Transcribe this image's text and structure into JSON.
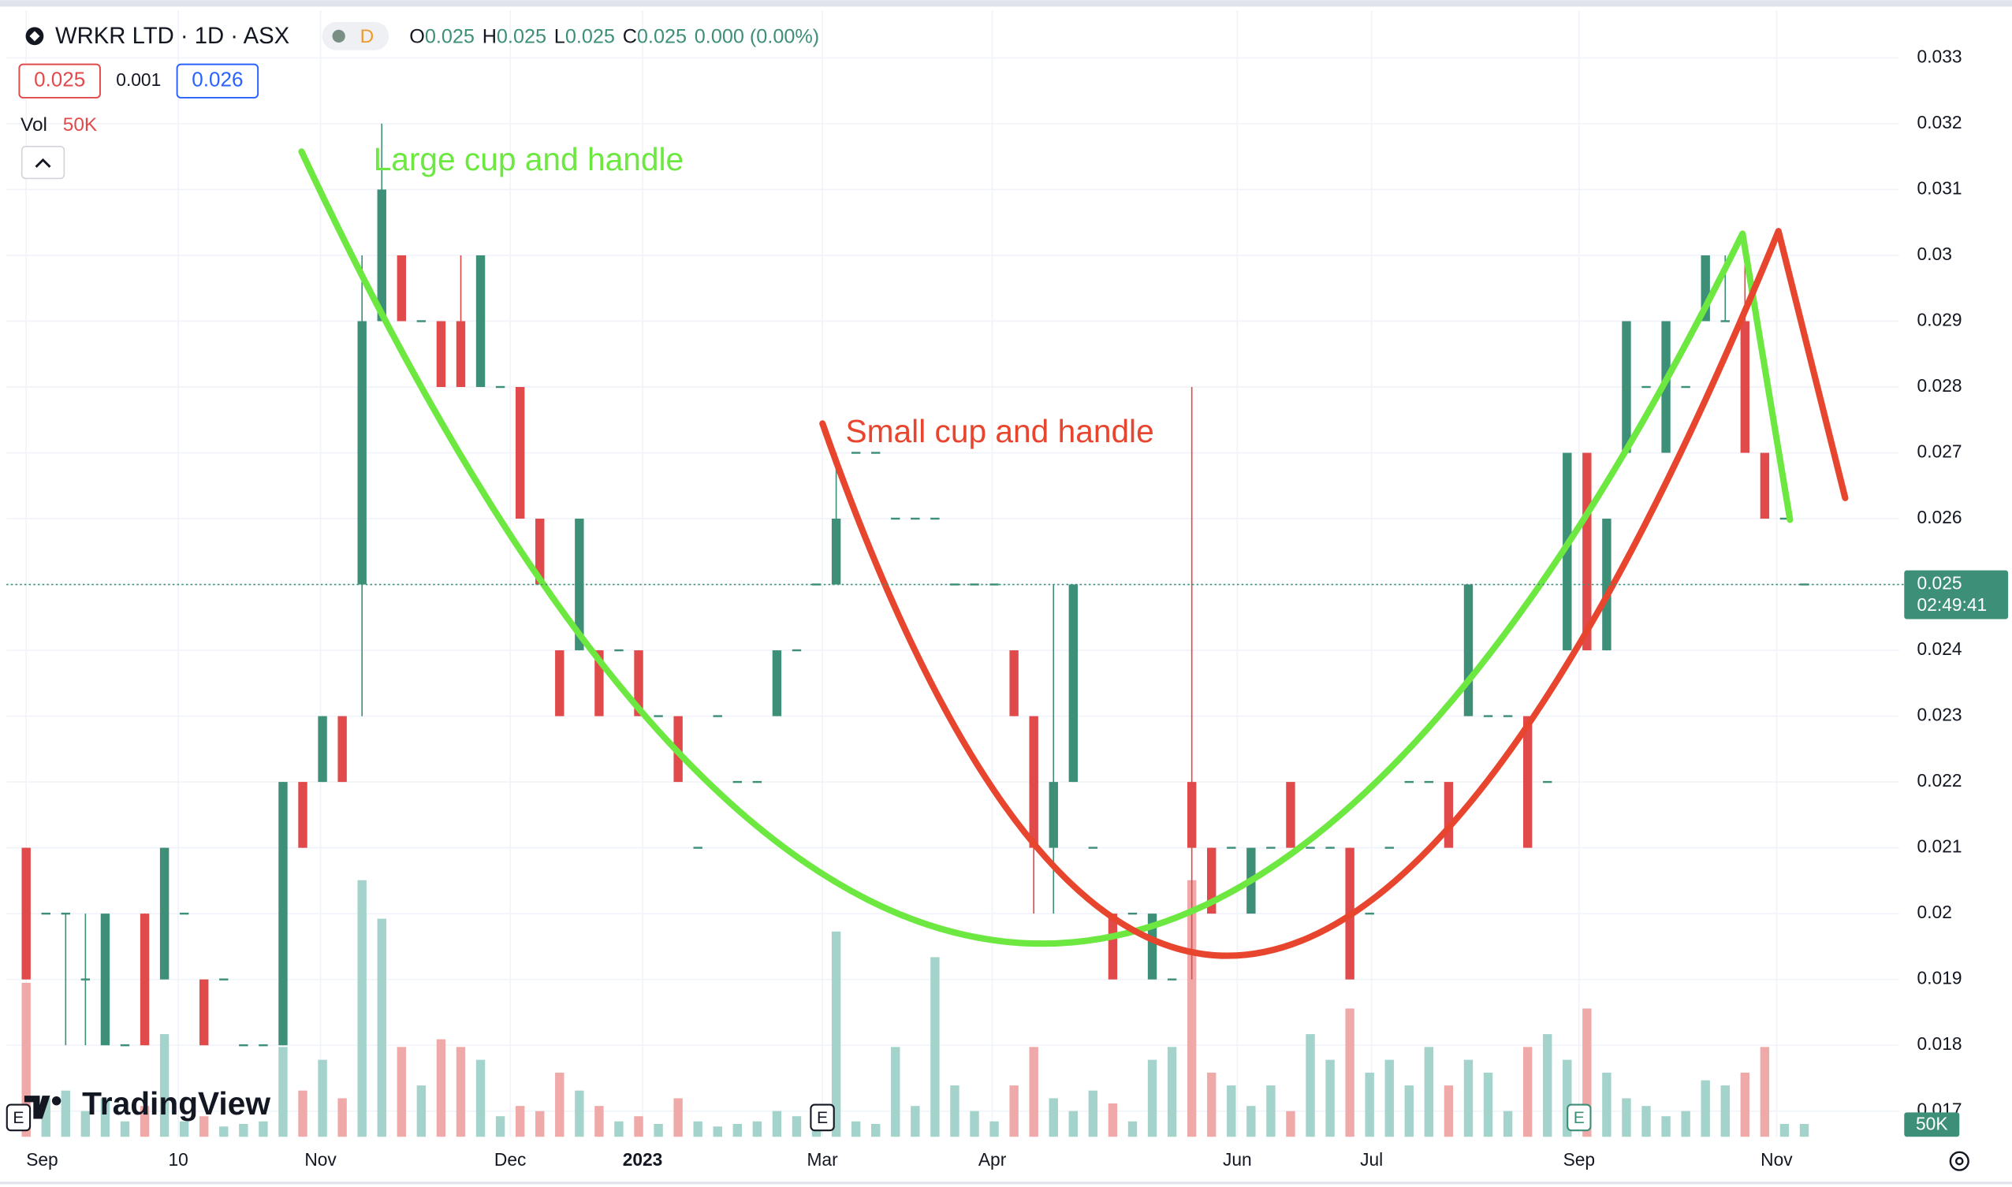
{
  "chart_data": {
    "type": "candlestick",
    "symbol": "WRKR LTD · 1D · ASX",
    "interval_badge": "D",
    "ohlc_letters": [
      "O",
      "H",
      "L",
      "C"
    ],
    "change_label": "0.000 (0.00%)",
    "bid": 0.025,
    "spread": 0.001,
    "ask": 0.026,
    "volume_title": "Vol",
    "last_volume_label": "50K",
    "countdown": "02:49:41",
    "brand": "TradingView",
    "events": [
      "E",
      "E",
      "E"
    ],
    "annotations": [
      "Large cup and handle",
      "Small cup and handle"
    ],
    "up_color": "#3d8f78",
    "down_color": "#e04a4a",
    "volume_up_color": "#a3d3cb",
    "volume_down_color": "#f0a9a9",
    "annotation_colors": [
      "#6de840",
      "#e8452e"
    ],
    "xlim": [
      -1,
      94.8
    ],
    "xticks": [
      {
        "value": 0,
        "label": "Sep"
      },
      {
        "value": 7.7,
        "label": "10"
      },
      {
        "value": 14.9,
        "label": "Nov"
      },
      {
        "value": 24.5,
        "label": "Dec"
      },
      {
        "value": 31.2,
        "label": "2023"
      },
      {
        "value": 40.3,
        "label": "Mar"
      },
      {
        "value": 48.9,
        "label": "Apr"
      },
      {
        "value": 61.3,
        "label": "Jun"
      },
      {
        "value": 68.1,
        "label": "Jul"
      },
      {
        "value": 78.6,
        "label": "Sep"
      },
      {
        "value": 88.6,
        "label": "Nov"
      }
    ],
    "ylim": [
      0.01661,
      0.03372
    ],
    "yticks": [
      0.017,
      0.018,
      0.019,
      0.02,
      0.021,
      0.022,
      0.023,
      0.024,
      0.025,
      0.026,
      0.027,
      0.028,
      0.029,
      0.03,
      0.031,
      0.032,
      0.033
    ],
    "vlim": [
      0,
      4390000
    ],
    "grid": true,
    "open": [
      0.021,
      0.02,
      0.02,
      0.019,
      0.018,
      0.018,
      0.02,
      0.019,
      0.02,
      0.019,
      0.019,
      0.018,
      0.018,
      0.018,
      0.022,
      0.022,
      0.023,
      0.025,
      0.029,
      0.03,
      0.029,
      0.029,
      0.029,
      0.028,
      0.028,
      0.028,
      0.026,
      0.024,
      0.024,
      0.024,
      0.024,
      0.024,
      0.023,
      0.023,
      0.021,
      0.023,
      0.022,
      0.022,
      0.023,
      0.024,
      0.025,
      0.025,
      0.027,
      0.027,
      0.026,
      0.026,
      0.026,
      0.025,
      0.025,
      0.025,
      0.024,
      0.023,
      0.021,
      0.022,
      0.021,
      0.02,
      0.02,
      0.019,
      0.019,
      0.022,
      0.021,
      0.021,
      0.02,
      0.021,
      0.022,
      0.021,
      0.021,
      0.021,
      0.02,
      0.021,
      0.022,
      0.022,
      0.022,
      0.023,
      0.023,
      0.023,
      0.023,
      0.022,
      0.024,
      0.027,
      0.024,
      0.027,
      0.028,
      0.027,
      0.028,
      0.029,
      0.029,
      0.029,
      0.027,
      0.026,
      0.025
    ],
    "high": [
      0.021,
      0.02,
      0.02,
      0.02,
      0.02,
      0.018,
      0.02,
      0.021,
      0.02,
      0.019,
      0.019,
      0.018,
      0.018,
      0.022,
      0.022,
      0.023,
      0.023,
      0.03,
      0.032,
      0.03,
      0.029,
      0.029,
      0.03,
      0.03,
      0.028,
      0.028,
      0.026,
      0.024,
      0.026,
      0.024,
      0.024,
      0.024,
      0.023,
      0.023,
      0.021,
      0.023,
      0.022,
      0.022,
      0.024,
      0.024,
      0.025,
      0.027,
      0.027,
      0.027,
      0.026,
      0.026,
      0.026,
      0.025,
      0.025,
      0.025,
      0.024,
      0.023,
      0.025,
      0.025,
      0.021,
      0.02,
      0.02,
      0.02,
      0.019,
      0.028,
      0.021,
      0.021,
      0.021,
      0.021,
      0.022,
      0.021,
      0.021,
      0.021,
      0.02,
      0.021,
      0.022,
      0.022,
      0.022,
      0.025,
      0.023,
      0.023,
      0.023,
      0.022,
      0.027,
      0.027,
      0.026,
      0.029,
      0.028,
      0.029,
      0.028,
      0.03,
      0.03,
      0.03,
      0.027,
      0.026,
      0.025
    ],
    "low": [
      0.019,
      0.02,
      0.018,
      0.018,
      0.018,
      0.018,
      0.018,
      0.019,
      0.02,
      0.018,
      0.019,
      0.018,
      0.018,
      0.018,
      0.021,
      0.022,
      0.022,
      0.023,
      0.029,
      0.029,
      0.029,
      0.028,
      0.028,
      0.028,
      0.028,
      0.026,
      0.025,
      0.023,
      0.024,
      0.023,
      0.024,
      0.023,
      0.023,
      0.022,
      0.021,
      0.023,
      0.022,
      0.022,
      0.023,
      0.024,
      0.025,
      0.025,
      0.027,
      0.027,
      0.026,
      0.026,
      0.026,
      0.025,
      0.025,
      0.025,
      0.023,
      0.02,
      0.02,
      0.022,
      0.021,
      0.019,
      0.02,
      0.019,
      0.019,
      0.019,
      0.02,
      0.021,
      0.02,
      0.021,
      0.021,
      0.021,
      0.021,
      0.019,
      0.02,
      0.021,
      0.022,
      0.022,
      0.021,
      0.023,
      0.023,
      0.023,
      0.021,
      0.022,
      0.024,
      0.024,
      0.024,
      0.027,
      0.028,
      0.027,
      0.028,
      0.029,
      0.029,
      0.027,
      0.026,
      0.026,
      0.025
    ],
    "close": [
      0.019,
      0.02,
      0.02,
      0.019,
      0.02,
      0.018,
      0.018,
      0.021,
      0.02,
      0.018,
      0.019,
      0.018,
      0.018,
      0.022,
      0.021,
      0.023,
      0.022,
      0.029,
      0.031,
      0.029,
      0.029,
      0.028,
      0.028,
      0.03,
      0.028,
      0.026,
      0.025,
      0.023,
      0.026,
      0.023,
      0.024,
      0.023,
      0.023,
      0.022,
      0.021,
      0.023,
      0.022,
      0.022,
      0.024,
      0.024,
      0.025,
      0.026,
      0.027,
      0.027,
      0.026,
      0.026,
      0.026,
      0.025,
      0.025,
      0.025,
      0.023,
      0.021,
      0.022,
      0.025,
      0.021,
      0.019,
      0.02,
      0.02,
      0.019,
      0.021,
      0.02,
      0.021,
      0.021,
      0.021,
      0.021,
      0.021,
      0.021,
      0.019,
      0.02,
      0.021,
      0.022,
      0.022,
      0.021,
      0.025,
      0.023,
      0.023,
      0.021,
      0.022,
      0.027,
      0.024,
      0.026,
      0.029,
      0.028,
      0.029,
      0.028,
      0.03,
      0.029,
      0.027,
      0.026,
      0.026,
      0.025
    ],
    "volume": [
      600000,
      150000,
      180000,
      100000,
      150000,
      60000,
      120000,
      400000,
      60000,
      80000,
      40000,
      50000,
      60000,
      350000,
      180000,
      300000,
      150000,
      1000000,
      850000,
      350000,
      200000,
      380000,
      350000,
      300000,
      80000,
      120000,
      100000,
      250000,
      180000,
      120000,
      60000,
      80000,
      50000,
      150000,
      60000,
      40000,
      50000,
      60000,
      100000,
      80000,
      70000,
      800000,
      60000,
      50000,
      350000,
      120000,
      700000,
      200000,
      100000,
      60000,
      200000,
      350000,
      150000,
      100000,
      180000,
      130000,
      60000,
      300000,
      350000,
      1000000,
      250000,
      200000,
      120000,
      200000,
      100000,
      400000,
      300000,
      500000,
      250000,
      300000,
      200000,
      350000,
      200000,
      300000,
      250000,
      100000,
      350000,
      400000,
      300000,
      500000,
      250000,
      150000,
      120000,
      80000,
      100000,
      220000,
      200000,
      250000,
      350000,
      50000,
      50000
    ]
  }
}
